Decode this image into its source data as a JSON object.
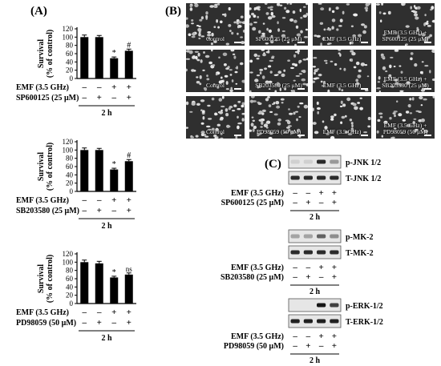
{
  "panel_labels": {
    "a": "(A)",
    "b": "(B)",
    "c": "(C)"
  },
  "chart_data": [
    {
      "type": "bar",
      "ylabel": "Survival (% of control)",
      "ylabel_lines": [
        "Survival",
        "(% of control)"
      ],
      "ylim": [
        0,
        120
      ],
      "yticks": [
        "0",
        "20",
        "40",
        "60",
        "80",
        "100",
        "120"
      ],
      "categories": [
        "control",
        "SP600125",
        "EMF",
        "EMF+SP600125"
      ],
      "values": [
        100,
        100,
        49,
        67
      ],
      "errors": [
        5,
        4,
        3,
        4
      ],
      "annotations": [
        "",
        "",
        "*",
        "#"
      ],
      "conditions": [
        {
          "label": "EMF (3.5 GHz)",
          "signs": [
            "–",
            "–",
            "+",
            "+"
          ]
        },
        {
          "label": "SP600125 (25 μM)",
          "signs": [
            "–",
            "+",
            "–",
            "+"
          ]
        }
      ],
      "time": "2 h"
    },
    {
      "type": "bar",
      "ylabel": "Survival (% of control)",
      "ylabel_lines": [
        "Survival",
        "(% of control)"
      ],
      "ylim": [
        0,
        120
      ],
      "yticks": [
        "0",
        "20",
        "40",
        "60",
        "80",
        "100",
        "120"
      ],
      "categories": [
        "control",
        "SB203580",
        "EMF",
        "EMF+SB203580"
      ],
      "values": [
        100,
        100,
        53,
        73
      ],
      "errors": [
        5,
        4,
        3,
        4
      ],
      "annotations": [
        "",
        "",
        "*",
        "#"
      ],
      "conditions": [
        {
          "label": "EMF (3.5 GHz)",
          "signs": [
            "–",
            "–",
            "+",
            "+"
          ]
        },
        {
          "label": "SB203580 (25 μM)",
          "signs": [
            "–",
            "+",
            "–",
            "+"
          ]
        }
      ],
      "time": "2 h"
    },
    {
      "type": "bar",
      "ylabel": "Survival (% of control)",
      "ylabel_lines": [
        "Survival",
        "(% of control)"
      ],
      "ylim": [
        0,
        120
      ],
      "yticks": [
        "0",
        "20",
        "40",
        "60",
        "80",
        "100",
        "120"
      ],
      "categories": [
        "control",
        "PD98059",
        "EMF",
        "EMF+PD98059"
      ],
      "values": [
        100,
        97,
        63,
        70
      ],
      "errors": [
        5,
        5,
        3,
        4
      ],
      "annotations": [
        "",
        "",
        "*",
        "ns"
      ],
      "conditions": [
        {
          "label": "EMF (3.5 GHz)",
          "signs": [
            "–",
            "–",
            "+",
            "+"
          ]
        },
        {
          "label": "PD98059 (50 μM)",
          "signs": [
            "–",
            "+",
            "–",
            "+"
          ]
        }
      ],
      "time": "2 h"
    }
  ],
  "micrographs": [
    [
      "Control",
      "SP600125 (25 μM)",
      "EMF (3.5 GHz)",
      "EMF (3.5 GHz) + SP600125 (25 μM)"
    ],
    [
      "Control",
      "SB203580 (25 μM)",
      "EMF (3.5 GHz)",
      "EMF (3.5 GHz) + SB203580 (25 μM)"
    ],
    [
      "Control",
      "PD98059 (50 μM)",
      "EMF (3.5 GHz)",
      "EMF (3.5 GHz) + PD98059 (50 μM)"
    ]
  ],
  "blots": [
    {
      "bands": [
        "p-JNK 1/2",
        "T-JNK 1/2"
      ],
      "phospho_intensity": [
        0.1,
        0.1,
        0.85,
        0.35
      ],
      "total_intensity": [
        0.85,
        0.85,
        0.85,
        0.85
      ],
      "conditions": [
        {
          "label": "EMF (3.5 GHz)",
          "signs": [
            "–",
            "–",
            "+",
            "+"
          ]
        },
        {
          "label": "SP600125 (25 μM)",
          "signs": [
            "–",
            "+",
            "–",
            "+"
          ]
        }
      ],
      "time": "2 h"
    },
    {
      "bands": [
        "p-MK-2",
        "T-MK-2"
      ],
      "phospho_intensity": [
        0.3,
        0.3,
        0.6,
        0.4
      ],
      "total_intensity": [
        0.85,
        0.85,
        0.85,
        0.85
      ],
      "conditions": [
        {
          "label": "EMF (3.5 GHz)",
          "signs": [
            "–",
            "–",
            "+",
            "+"
          ]
        },
        {
          "label": "SB203580 (25 μM)",
          "signs": [
            "–",
            "+",
            "–",
            "+"
          ]
        }
      ],
      "time": "2 h"
    },
    {
      "bands": [
        "p-ERK-1/2",
        "T-ERK-1/2"
      ],
      "phospho_intensity": [
        0.0,
        0.0,
        0.95,
        0.75
      ],
      "total_intensity": [
        0.9,
        0.9,
        0.9,
        0.9
      ],
      "conditions": [
        {
          "label": "EMF (3.5 GHz)",
          "signs": [
            "–",
            "–",
            "+",
            "+"
          ]
        },
        {
          "label": "PD98059 (50 μM)",
          "signs": [
            "–",
            "+",
            "–",
            "+"
          ]
        }
      ],
      "time": "2 h"
    }
  ]
}
